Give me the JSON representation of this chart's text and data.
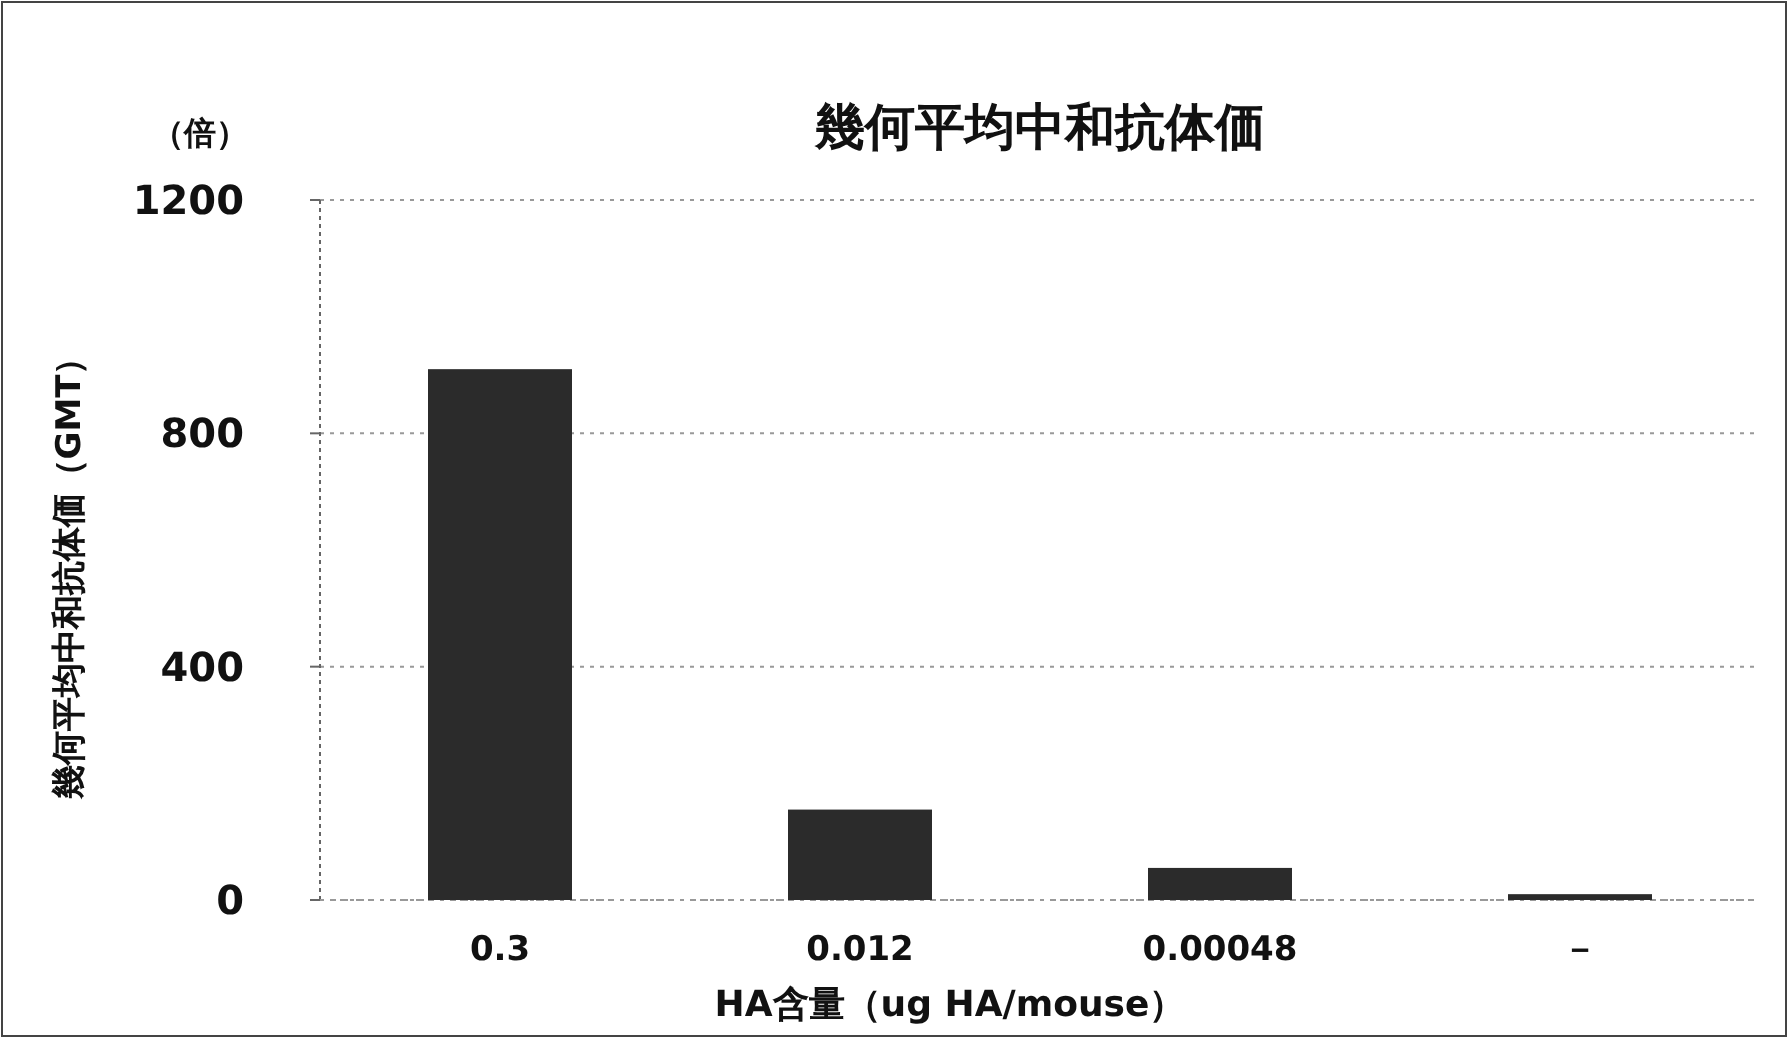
{
  "chart_data": {
    "type": "bar",
    "title": "幾何平均中和抗体価",
    "xlabel": "HA含量（ug HA/mouse）",
    "ylabel": "幾何平均中和抗体価（GMT）",
    "annotations": [
      "（倍）"
    ],
    "categories": [
      "0.3",
      "0.012",
      "0.00048",
      "－"
    ],
    "values": [
      910,
      155,
      55,
      10
    ],
    "color": "#2b2b2b",
    "ylim": [
      0,
      1200
    ],
    "yticks": [
      0,
      400,
      800,
      1200
    ],
    "grid": "y"
  }
}
